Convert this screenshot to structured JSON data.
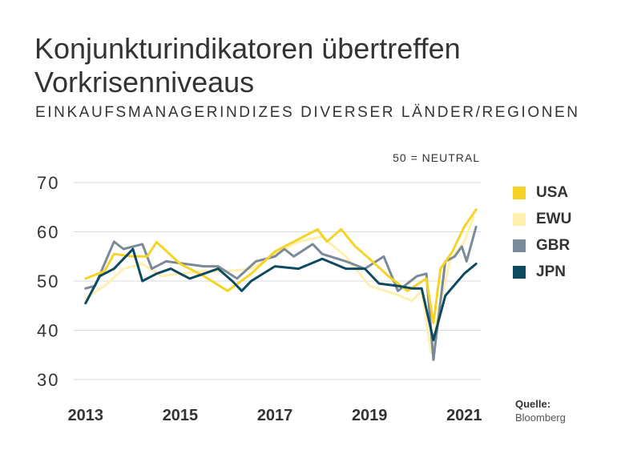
{
  "title": "Konjunkturindikatoren übertreffen Vorkrisenniveaus",
  "subtitle": "EINKAUFSMANAGERINDIZES DIVERSER LÄNDER/REGIONEN",
  "note": "50 = NEUTRAL",
  "source": {
    "label": "Quelle:",
    "value": "Bloomberg"
  },
  "colors": {
    "USA": "#f5d327",
    "EWU": "#fff0b0",
    "GBR": "#7b8a99",
    "JPN": "#0d4a60"
  },
  "chart_data": {
    "type": "line",
    "ylim": [
      30,
      70
    ],
    "xlim": [
      2012.8,
      2021.35
    ],
    "yticks": [
      70,
      60,
      50,
      40,
      30
    ],
    "xticks": [
      "2013",
      "2015",
      "2017",
      "2019",
      "2021"
    ],
    "grid": true,
    "legend_position": "right",
    "series": [
      {
        "name": "EWU",
        "values": [
          [
            2013.0,
            46.5
          ],
          [
            2013.4,
            49.0
          ],
          [
            2013.8,
            52.5
          ],
          [
            2014.2,
            53.5
          ],
          [
            2014.6,
            51.0
          ],
          [
            2015.0,
            51.5
          ],
          [
            2015.5,
            52.0
          ],
          [
            2016.0,
            52.0
          ],
          [
            2016.5,
            52.5
          ],
          [
            2017.0,
            55.5
          ],
          [
            2017.5,
            58.0
          ],
          [
            2018.0,
            59.0
          ],
          [
            2018.5,
            55.0
          ],
          [
            2019.0,
            49.0
          ],
          [
            2019.5,
            47.5
          ],
          [
            2019.9,
            46.0
          ],
          [
            2020.1,
            48.0
          ],
          [
            2020.3,
            35.5
          ],
          [
            2020.5,
            46.0
          ],
          [
            2020.7,
            54.0
          ],
          [
            2021.0,
            58.0
          ],
          [
            2021.2,
            63.0
          ]
        ]
      },
      {
        "name": "GBR",
        "values": [
          [
            2013.0,
            48.5
          ],
          [
            2013.2,
            49.0
          ],
          [
            2013.4,
            53.5
          ],
          [
            2013.6,
            58.0
          ],
          [
            2013.8,
            56.5
          ],
          [
            2014.2,
            57.5
          ],
          [
            2014.4,
            52.5
          ],
          [
            2014.7,
            54.0
          ],
          [
            2015.1,
            53.5
          ],
          [
            2015.5,
            53.0
          ],
          [
            2015.8,
            53.0
          ],
          [
            2016.2,
            50.5
          ],
          [
            2016.6,
            54.0
          ],
          [
            2017.0,
            55.0
          ],
          [
            2017.2,
            56.5
          ],
          [
            2017.4,
            55.0
          ],
          [
            2017.8,
            57.5
          ],
          [
            2018.0,
            55.5
          ],
          [
            2018.5,
            54.0
          ],
          [
            2018.9,
            52.5
          ],
          [
            2019.3,
            55.0
          ],
          [
            2019.6,
            48.0
          ],
          [
            2020.0,
            51.0
          ],
          [
            2020.2,
            51.5
          ],
          [
            2020.35,
            34.0
          ],
          [
            2020.6,
            54.0
          ],
          [
            2020.8,
            55.0
          ],
          [
            2020.95,
            57.0
          ],
          [
            2021.05,
            54.0
          ],
          [
            2021.25,
            61.0
          ]
        ]
      },
      {
        "name": "USA",
        "values": [
          [
            2013.0,
            50.5
          ],
          [
            2013.4,
            52.0
          ],
          [
            2013.6,
            55.5
          ],
          [
            2014.0,
            55.0
          ],
          [
            2014.3,
            55.0
          ],
          [
            2014.5,
            57.9
          ],
          [
            2015.0,
            53.5
          ],
          [
            2015.5,
            51.0
          ],
          [
            2016.0,
            48.0
          ],
          [
            2016.5,
            51.5
          ],
          [
            2017.0,
            56.0
          ],
          [
            2017.4,
            58.0
          ],
          [
            2017.9,
            60.5
          ],
          [
            2018.1,
            58.0
          ],
          [
            2018.4,
            60.5
          ],
          [
            2018.7,
            57.0
          ],
          [
            2019.0,
            54.5
          ],
          [
            2019.4,
            51.0
          ],
          [
            2019.8,
            48.0
          ],
          [
            2020.2,
            50.5
          ],
          [
            2020.35,
            41.5
          ],
          [
            2020.5,
            52.5
          ],
          [
            2020.75,
            56.0
          ],
          [
            2021.0,
            61.0
          ],
          [
            2021.25,
            64.5
          ]
        ]
      },
      {
        "name": "JPN",
        "values": [
          [
            2013.0,
            45.5
          ],
          [
            2013.3,
            51.0
          ],
          [
            2013.6,
            52.5
          ],
          [
            2013.9,
            55.5
          ],
          [
            2014.0,
            56.5
          ],
          [
            2014.2,
            50.0
          ],
          [
            2014.5,
            51.5
          ],
          [
            2014.8,
            52.5
          ],
          [
            2015.0,
            51.5
          ],
          [
            2015.2,
            50.5
          ],
          [
            2015.5,
            51.5
          ],
          [
            2015.8,
            52.5
          ],
          [
            2016.1,
            50.0
          ],
          [
            2016.3,
            48.0
          ],
          [
            2016.5,
            50.0
          ],
          [
            2017.0,
            53.0
          ],
          [
            2017.5,
            52.5
          ],
          [
            2018.0,
            54.5
          ],
          [
            2018.5,
            52.5
          ],
          [
            2018.9,
            52.5
          ],
          [
            2019.2,
            49.5
          ],
          [
            2019.6,
            49.0
          ],
          [
            2019.9,
            48.5
          ],
          [
            2020.1,
            48.5
          ],
          [
            2020.35,
            38.0
          ],
          [
            2020.6,
            47.0
          ],
          [
            2021.0,
            51.5
          ],
          [
            2021.25,
            53.5
          ]
        ]
      }
    ]
  }
}
